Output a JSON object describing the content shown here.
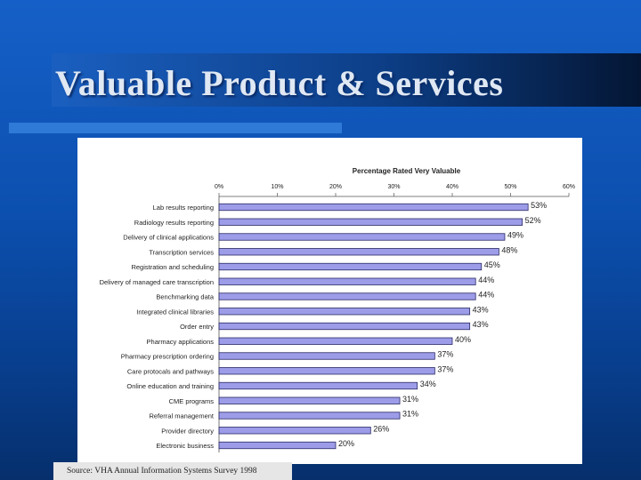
{
  "slide": {
    "title": "Valuable Product & Services",
    "source": "Source: VHA Annual Information Systems Survey 1998"
  },
  "colors": {
    "background": "#0c4fae",
    "bar_fill": "#9c9ce8",
    "bar_stroke": "#2a2a66"
  },
  "chart_data": {
    "type": "bar",
    "orientation": "horizontal",
    "title": "Percentage Rated Very Valuable",
    "xlim": [
      0,
      60
    ],
    "x_ticks": [
      "0%",
      "10%",
      "20%",
      "30%",
      "40%",
      "50%",
      "60%"
    ],
    "x_axis_position": "top",
    "grid": false,
    "categories": [
      "Lab results reporting",
      "Radiology results reporting",
      "Delivery of clinical applications",
      "Transcription services",
      "Registration and scheduling",
      "Delivery of managed care transcription",
      "Benchmarking data",
      "Integrated clinical libraries",
      "Order entry",
      "Pharmacy applications",
      "Pharmacy prescription ordering",
      "Care protocals and pathways",
      "Online education and training",
      "CME programs",
      "Referral management",
      "Provider directory",
      "Electronic business"
    ],
    "values": [
      53,
      52,
      49,
      48,
      45,
      44,
      44,
      43,
      43,
      40,
      37,
      37,
      34,
      31,
      31,
      26,
      20
    ],
    "data_labels": [
      "53%",
      "52%",
      "49%",
      "48%",
      "45%",
      "44%",
      "44%",
      "43%",
      "43%",
      "40%",
      "37%",
      "37%",
      "34%",
      "31%",
      "31%",
      "26%",
      "20%"
    ]
  }
}
